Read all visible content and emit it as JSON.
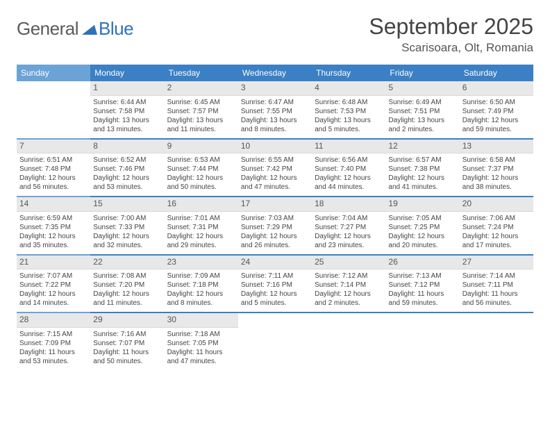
{
  "logo": {
    "text1": "General",
    "text2": "Blue"
  },
  "title": "September 2025",
  "location": "Scarisoara, Olt, Romania",
  "colors": {
    "header_main": "#3b7fc4",
    "header_light": "#6ca3d6",
    "daynum_bg": "#e8e8e8"
  },
  "weekdays": [
    "Sunday",
    "Monday",
    "Tuesday",
    "Wednesday",
    "Thursday",
    "Friday",
    "Saturday"
  ],
  "weeks": [
    [
      null,
      {
        "n": "1",
        "sr": "6:44 AM",
        "ss": "7:58 PM",
        "dl": "13 hours and 13 minutes."
      },
      {
        "n": "2",
        "sr": "6:45 AM",
        "ss": "7:57 PM",
        "dl": "13 hours and 11 minutes."
      },
      {
        "n": "3",
        "sr": "6:47 AM",
        "ss": "7:55 PM",
        "dl": "13 hours and 8 minutes."
      },
      {
        "n": "4",
        "sr": "6:48 AM",
        "ss": "7:53 PM",
        "dl": "13 hours and 5 minutes."
      },
      {
        "n": "5",
        "sr": "6:49 AM",
        "ss": "7:51 PM",
        "dl": "13 hours and 2 minutes."
      },
      {
        "n": "6",
        "sr": "6:50 AM",
        "ss": "7:49 PM",
        "dl": "12 hours and 59 minutes."
      }
    ],
    [
      {
        "n": "7",
        "sr": "6:51 AM",
        "ss": "7:48 PM",
        "dl": "12 hours and 56 minutes."
      },
      {
        "n": "8",
        "sr": "6:52 AM",
        "ss": "7:46 PM",
        "dl": "12 hours and 53 minutes."
      },
      {
        "n": "9",
        "sr": "6:53 AM",
        "ss": "7:44 PM",
        "dl": "12 hours and 50 minutes."
      },
      {
        "n": "10",
        "sr": "6:55 AM",
        "ss": "7:42 PM",
        "dl": "12 hours and 47 minutes."
      },
      {
        "n": "11",
        "sr": "6:56 AM",
        "ss": "7:40 PM",
        "dl": "12 hours and 44 minutes."
      },
      {
        "n": "12",
        "sr": "6:57 AM",
        "ss": "7:38 PM",
        "dl": "12 hours and 41 minutes."
      },
      {
        "n": "13",
        "sr": "6:58 AM",
        "ss": "7:37 PM",
        "dl": "12 hours and 38 minutes."
      }
    ],
    [
      {
        "n": "14",
        "sr": "6:59 AM",
        "ss": "7:35 PM",
        "dl": "12 hours and 35 minutes."
      },
      {
        "n": "15",
        "sr": "7:00 AM",
        "ss": "7:33 PM",
        "dl": "12 hours and 32 minutes."
      },
      {
        "n": "16",
        "sr": "7:01 AM",
        "ss": "7:31 PM",
        "dl": "12 hours and 29 minutes."
      },
      {
        "n": "17",
        "sr": "7:03 AM",
        "ss": "7:29 PM",
        "dl": "12 hours and 26 minutes."
      },
      {
        "n": "18",
        "sr": "7:04 AM",
        "ss": "7:27 PM",
        "dl": "12 hours and 23 minutes."
      },
      {
        "n": "19",
        "sr": "7:05 AM",
        "ss": "7:25 PM",
        "dl": "12 hours and 20 minutes."
      },
      {
        "n": "20",
        "sr": "7:06 AM",
        "ss": "7:24 PM",
        "dl": "12 hours and 17 minutes."
      }
    ],
    [
      {
        "n": "21",
        "sr": "7:07 AM",
        "ss": "7:22 PM",
        "dl": "12 hours and 14 minutes."
      },
      {
        "n": "22",
        "sr": "7:08 AM",
        "ss": "7:20 PM",
        "dl": "12 hours and 11 minutes."
      },
      {
        "n": "23",
        "sr": "7:09 AM",
        "ss": "7:18 PM",
        "dl": "12 hours and 8 minutes."
      },
      {
        "n": "24",
        "sr": "7:11 AM",
        "ss": "7:16 PM",
        "dl": "12 hours and 5 minutes."
      },
      {
        "n": "25",
        "sr": "7:12 AM",
        "ss": "7:14 PM",
        "dl": "12 hours and 2 minutes."
      },
      {
        "n": "26",
        "sr": "7:13 AM",
        "ss": "7:12 PM",
        "dl": "11 hours and 59 minutes."
      },
      {
        "n": "27",
        "sr": "7:14 AM",
        "ss": "7:11 PM",
        "dl": "11 hours and 56 minutes."
      }
    ],
    [
      {
        "n": "28",
        "sr": "7:15 AM",
        "ss": "7:09 PM",
        "dl": "11 hours and 53 minutes."
      },
      {
        "n": "29",
        "sr": "7:16 AM",
        "ss": "7:07 PM",
        "dl": "11 hours and 50 minutes."
      },
      {
        "n": "30",
        "sr": "7:18 AM",
        "ss": "7:05 PM",
        "dl": "11 hours and 47 minutes."
      },
      null,
      null,
      null,
      null
    ]
  ]
}
